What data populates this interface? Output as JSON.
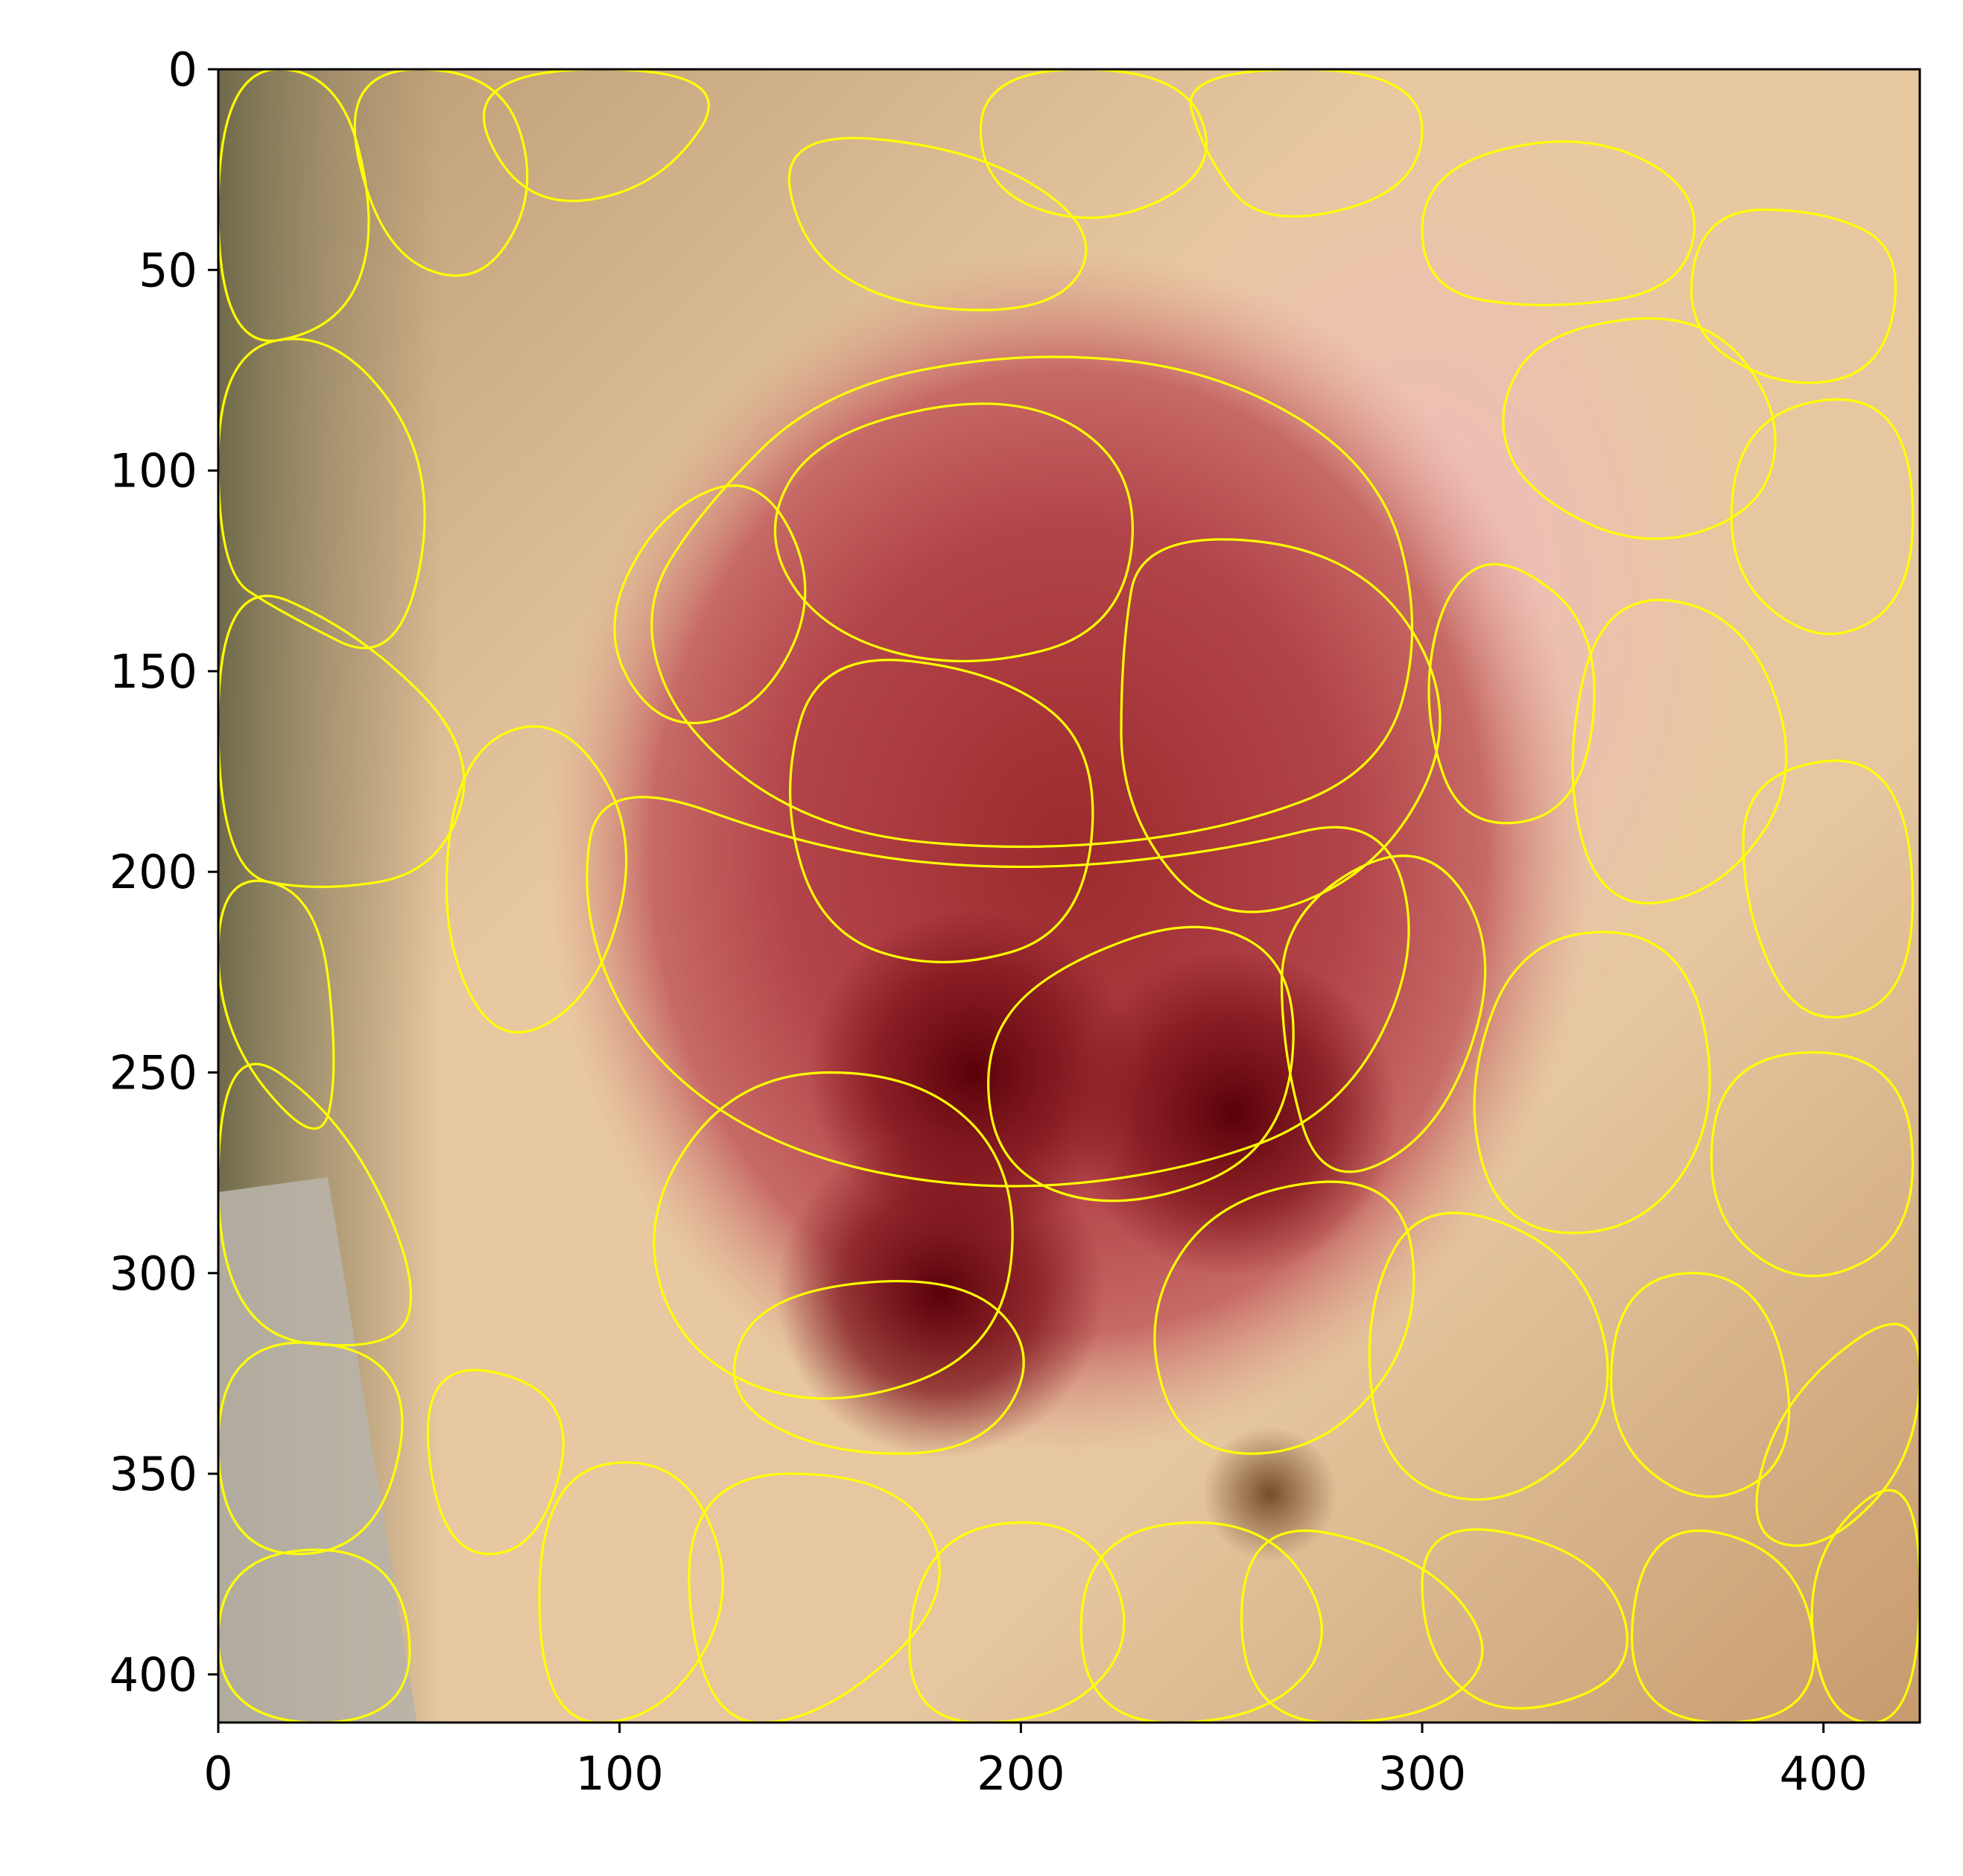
{
  "chart_data": {
    "type": "image-segmentation",
    "title": "",
    "xlabel": "",
    "ylabel": "",
    "xlim": [
      0,
      424
    ],
    "ylim": [
      412,
      0
    ],
    "grid": false,
    "xticks": [
      {
        "value": 0,
        "label": "0"
      },
      {
        "value": 100,
        "label": "100"
      },
      {
        "value": 200,
        "label": "200"
      },
      {
        "value": 300,
        "label": "300"
      },
      {
        "value": 400,
        "label": "400"
      }
    ],
    "yticks": [
      {
        "value": 0,
        "label": "0"
      },
      {
        "value": 50,
        "label": "50"
      },
      {
        "value": 100,
        "label": "100"
      },
      {
        "value": 150,
        "label": "150"
      },
      {
        "value": 200,
        "label": "200"
      },
      {
        "value": 250,
        "label": "250"
      },
      {
        "value": 300,
        "label": "300"
      },
      {
        "value": 350,
        "label": "350"
      },
      {
        "value": 400,
        "label": "400"
      }
    ],
    "boundary_color": "#ffff00",
    "lesion": {
      "center": [
        212,
        195
      ],
      "radius_x": 130,
      "radius_y": 150
    },
    "dark_spots": [
      {
        "center": [
          253,
          260
        ]
      },
      {
        "center": [
          188,
          250
        ]
      },
      {
        "center": [
          180,
          305
        ]
      },
      {
        "center": [
          262,
          355
        ]
      }
    ],
    "segments": [
      [
        [
          120,
          110
        ],
        [
          150,
          80
        ],
        [
          200,
          70
        ],
        [
          250,
          75
        ],
        [
          290,
          100
        ],
        [
          300,
          140
        ],
        [
          290,
          175
        ],
        [
          250,
          190
        ],
        [
          200,
          195
        ],
        [
          150,
          190
        ],
        [
          115,
          165
        ],
        [
          105,
          135
        ]
      ],
      [
        [
          95,
          175
        ],
        [
          150,
          195
        ],
        [
          200,
          200
        ],
        [
          250,
          195
        ],
        [
          290,
          185
        ],
        [
          300,
          220
        ],
        [
          280,
          260
        ],
        [
          240,
          275
        ],
        [
          190,
          280
        ],
        [
          140,
          270
        ],
        [
          105,
          245
        ],
        [
          90,
          210
        ]
      ],
      [
        [
          150,
          90
        ],
        [
          200,
          80
        ],
        [
          230,
          100
        ],
        [
          225,
          140
        ],
        [
          185,
          150
        ],
        [
          150,
          140
        ],
        [
          135,
          115
        ]
      ],
      [
        [
          230,
          115
        ],
        [
          285,
          120
        ],
        [
          310,
          160
        ],
        [
          290,
          200
        ],
        [
          250,
          215
        ],
        [
          225,
          185
        ],
        [
          225,
          145
        ]
      ],
      [
        [
          150,
          145
        ],
        [
          195,
          150
        ],
        [
          220,
          170
        ],
        [
          215,
          215
        ],
        [
          180,
          225
        ],
        [
          150,
          215
        ],
        [
          140,
          180
        ]
      ],
      [
        [
          205,
          225
        ],
        [
          245,
          210
        ],
        [
          270,
          225
        ],
        [
          265,
          270
        ],
        [
          225,
          285
        ],
        [
          195,
          275
        ],
        [
          190,
          245
        ]
      ],
      [
        [
          130,
          250
        ],
        [
          175,
          250
        ],
        [
          200,
          275
        ],
        [
          195,
          320
        ],
        [
          150,
          335
        ],
        [
          115,
          320
        ],
        [
          105,
          285
        ]
      ],
      [
        [
          110,
          110
        ],
        [
          135,
          100
        ],
        [
          150,
          130
        ],
        [
          135,
          160
        ],
        [
          110,
          165
        ],
        [
          95,
          140
        ]
      ],
      [
        [
          60,
          170
        ],
        [
          85,
          160
        ],
        [
          105,
          190
        ],
        [
          95,
          230
        ],
        [
          70,
          245
        ],
        [
          55,
          215
        ]
      ],
      [
        [
          265,
          210
        ],
        [
          300,
          190
        ],
        [
          320,
          220
        ],
        [
          305,
          265
        ],
        [
          275,
          280
        ],
        [
          265,
          245
        ]
      ],
      [
        [
          250,
          280
        ],
        [
          295,
          275
        ],
        [
          300,
          315
        ],
        [
          275,
          345
        ],
        [
          240,
          345
        ],
        [
          230,
          310
        ]
      ],
      [
        [
          135,
          305
        ],
        [
          185,
          300
        ],
        [
          205,
          320
        ],
        [
          190,
          345
        ],
        [
          150,
          345
        ],
        [
          125,
          330
        ]
      ],
      [
        [
          330,
          65
        ],
        [
          370,
          60
        ],
        [
          390,
          85
        ],
        [
          385,
          110
        ],
        [
          355,
          120
        ],
        [
          325,
          105
        ],
        [
          318,
          85
        ]
      ],
      [
        [
          380,
          85
        ],
        [
          420,
          80
        ],
        [
          424,
          130
        ],
        [
          400,
          145
        ],
        [
          375,
          125
        ]
      ],
      [
        [
          300,
          25
        ],
        [
          340,
          15
        ],
        [
          370,
          30
        ],
        [
          365,
          55
        ],
        [
          330,
          60
        ],
        [
          300,
          55
        ]
      ],
      [
        [
          370,
          35
        ],
        [
          400,
          35
        ],
        [
          420,
          45
        ],
        [
          415,
          75
        ],
        [
          390,
          80
        ],
        [
          365,
          65
        ]
      ],
      [
        [
          320,
          120
        ],
        [
          345,
          140
        ],
        [
          340,
          185
        ],
        [
          310,
          190
        ],
        [
          300,
          160
        ],
        [
          305,
          130
        ]
      ],
      [
        [
          345,
          130
        ],
        [
          380,
          135
        ],
        [
          395,
          175
        ],
        [
          375,
          205
        ],
        [
          345,
          210
        ],
        [
          335,
          175
        ]
      ],
      [
        [
          380,
          175
        ],
        [
          420,
          170
        ],
        [
          424,
          230
        ],
        [
          395,
          240
        ],
        [
          380,
          210
        ]
      ],
      [
        [
          325,
          215
        ],
        [
          365,
          215
        ],
        [
          375,
          260
        ],
        [
          355,
          290
        ],
        [
          320,
          290
        ],
        [
          310,
          255
        ]
      ],
      [
        [
          375,
          245
        ],
        [
          420,
          245
        ],
        [
          424,
          290
        ],
        [
          395,
          305
        ],
        [
          370,
          285
        ]
      ],
      [
        [
          300,
          280
        ],
        [
          340,
          295
        ],
        [
          350,
          335
        ],
        [
          320,
          360
        ],
        [
          290,
          350
        ],
        [
          285,
          310
        ]
      ],
      [
        [
          350,
          300
        ],
        [
          385,
          300
        ],
        [
          395,
          345
        ],
        [
          370,
          360
        ],
        [
          345,
          340
        ]
      ],
      [
        [
          390,
          330
        ],
        [
          424,
          305
        ],
        [
          424,
          345
        ],
        [
          400,
          370
        ],
        [
          380,
          365
        ]
      ],
      [
        [
          0,
          0
        ],
        [
          30,
          0
        ],
        [
          40,
          40
        ],
        [
          30,
          65
        ],
        [
          0,
          70
        ]
      ],
      [
        [
          30,
          0
        ],
        [
          70,
          0
        ],
        [
          80,
          30
        ],
        [
          65,
          55
        ],
        [
          40,
          45
        ]
      ],
      [
        [
          60,
          0
        ],
        [
          130,
          0
        ],
        [
          110,
          30
        ],
        [
          75,
          35
        ]
      ],
      [
        [
          0,
          70
        ],
        [
          30,
          65
        ],
        [
          55,
          100
        ],
        [
          45,
          150
        ],
        [
          15,
          135
        ],
        [
          0,
          125
        ]
      ],
      [
        [
          0,
          125
        ],
        [
          35,
          140
        ],
        [
          65,
          170
        ],
        [
          55,
          200
        ],
        [
          25,
          205
        ],
        [
          0,
          200
        ]
      ],
      [
        [
          0,
          200
        ],
        [
          25,
          205
        ],
        [
          30,
          250
        ],
        [
          25,
          270
        ],
        [
          0,
          240
        ]
      ],
      [
        [
          0,
          240
        ],
        [
          30,
          260
        ],
        [
          50,
          300
        ],
        [
          45,
          320
        ],
        [
          0,
          315
        ]
      ],
      [
        [
          0,
          315
        ],
        [
          50,
          320
        ],
        [
          40,
          370
        ],
        [
          0,
          370
        ]
      ],
      [
        [
          0,
          370
        ],
        [
          45,
          368
        ],
        [
          50,
          412
        ],
        [
          0,
          412
        ]
      ],
      [
        [
          50,
          320
        ],
        [
          90,
          330
        ],
        [
          80,
          370
        ],
        [
          55,
          370
        ]
      ],
      [
        [
          80,
          350
        ],
        [
          115,
          345
        ],
        [
          130,
          380
        ],
        [
          110,
          412
        ],
        [
          80,
          412
        ]
      ],
      [
        [
          115,
          350
        ],
        [
          170,
          350
        ],
        [
          185,
          380
        ],
        [
          150,
          412
        ],
        [
          120,
          412
        ]
      ],
      [
        [
          175,
          365
        ],
        [
          215,
          360
        ],
        [
          230,
          390
        ],
        [
          210,
          412
        ],
        [
          170,
          412
        ]
      ],
      [
        [
          215,
          365
        ],
        [
          260,
          360
        ],
        [
          280,
          390
        ],
        [
          260,
          412
        ],
        [
          215,
          412
        ]
      ],
      [
        [
          255,
          360
        ],
        [
          300,
          370
        ],
        [
          320,
          395
        ],
        [
          300,
          412
        ],
        [
          255,
          412
        ]
      ],
      [
        [
          300,
          360
        ],
        [
          345,
          370
        ],
        [
          355,
          400
        ],
        [
          320,
          412
        ],
        [
          300,
          395
        ]
      ],
      [
        [
          355,
          360
        ],
        [
          395,
          370
        ],
        [
          400,
          412
        ],
        [
          350,
          412
        ]
      ],
      [
        [
          395,
          370
        ],
        [
          424,
          345
        ],
        [
          424,
          412
        ],
        [
          400,
          412
        ]
      ],
      [
        [
          140,
          15
        ],
        [
          190,
          20
        ],
        [
          220,
          40
        ],
        [
          210,
          60
        ],
        [
          170,
          60
        ],
        [
          145,
          45
        ]
      ],
      [
        [
          190,
          0
        ],
        [
          240,
          0
        ],
        [
          250,
          25
        ],
        [
          220,
          40
        ],
        [
          190,
          30
        ]
      ],
      [
        [
          240,
          0
        ],
        [
          300,
          0
        ],
        [
          300,
          30
        ],
        [
          260,
          40
        ],
        [
          245,
          20
        ]
      ]
    ]
  }
}
